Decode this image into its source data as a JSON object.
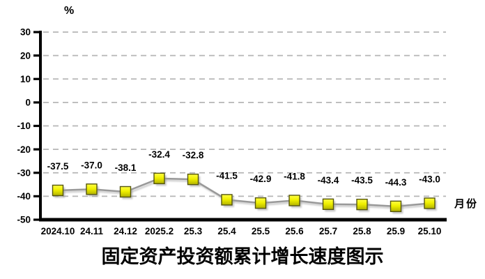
{
  "chart_data": {
    "type": "line",
    "title": "固定资产投资额累计增长速度图示",
    "y_unit_label": "%",
    "x_unit_label": "月份",
    "categories": [
      "2024.10",
      "24.11",
      "24.12",
      "2025.2",
      "25.3",
      "25.4",
      "25.5",
      "25.6",
      "25.7",
      "25.8",
      "25.9",
      "25.10"
    ],
    "values": [
      -37.5,
      -37.0,
      -38.1,
      -32.4,
      -32.8,
      -41.5,
      -42.9,
      -41.8,
      -43.4,
      -43.5,
      -44.3,
      -43.0
    ],
    "value_labels": [
      "-37.5",
      "-37.0",
      "-38.1",
      "-32.4",
      "-32.8",
      "-41.5",
      "-42.9",
      "-41.8",
      "-43.4",
      "-43.5",
      "-44.3",
      "-43.0"
    ],
    "ylim": [
      -50,
      30
    ],
    "yticks": [
      30,
      20,
      10,
      0,
      -10,
      -20,
      -30,
      -40,
      -50
    ],
    "grid": "horizontal-dashed",
    "legend": "none",
    "marker": "square",
    "data_labels": "above-points",
    "colors": {
      "line": "#999999",
      "line_shadow": "#c9c9c9",
      "marker_fill_top": "#ffff45",
      "marker_fill_mid": "#f0f000",
      "marker_fill_bottom": "#b2b200",
      "marker_border": "#55550f",
      "marker_shadow": "#9a9a9a",
      "grid": "#b5b5b5",
      "axis": "#000000",
      "text": "#000000",
      "background": "#ffffff"
    }
  }
}
